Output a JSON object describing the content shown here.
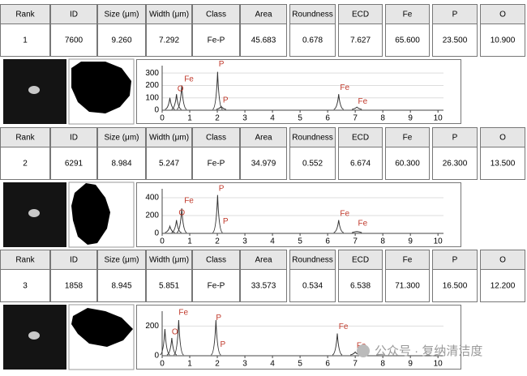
{
  "columns": [
    "Rank",
    "ID",
    "Size (μm)",
    "Width (μm)",
    "Class",
    "Area",
    "Roundness",
    "ECD",
    "Fe",
    "P",
    "O"
  ],
  "records": [
    {
      "values": [
        "1",
        "7600",
        "9.260",
        "7.292",
        "Fe-P",
        "45.683",
        "0.678",
        "7.627",
        "65.600",
        "23.500",
        "10.900"
      ],
      "spectrum": {
        "xlim": [
          0,
          10.2
        ],
        "xticks": [
          0,
          1,
          2,
          3,
          4,
          5,
          6,
          7,
          8,
          9,
          10
        ],
        "ylim": [
          0,
          360
        ],
        "yticks": [
          0,
          100,
          200,
          300
        ],
        "peaks": [
          {
            "x": 0.28,
            "y": 100
          },
          {
            "x": 0.52,
            "y": 130
          },
          {
            "x": 0.71,
            "y": 200
          },
          {
            "x": 2.01,
            "y": 310
          },
          {
            "x": 2.14,
            "y": 30
          },
          {
            "x": 6.4,
            "y": 130
          },
          {
            "x": 7.06,
            "y": 25
          }
        ],
        "labels": [
          {
            "text": "O",
            "x": 0.55,
            "y": 170
          },
          {
            "text": "Fe",
            "x": 0.8,
            "y": 250
          },
          {
            "text": "P",
            "x": 2.05,
            "y": 370
          },
          {
            "text": "P",
            "x": 2.2,
            "y": 80
          },
          {
            "text": "Fe",
            "x": 6.45,
            "y": 180
          },
          {
            "text": "Fe",
            "x": 7.1,
            "y": 70
          }
        ]
      }
    },
    {
      "values": [
        "2",
        "6291",
        "8.984",
        "5.247",
        "Fe-P",
        "34.979",
        "0.552",
        "6.674",
        "60.300",
        "26.300",
        "13.500"
      ],
      "spectrum": {
        "xlim": [
          0,
          10.2
        ],
        "xticks": [
          0,
          1,
          2,
          3,
          4,
          5,
          6,
          7,
          8,
          9,
          10
        ],
        "ylim": [
          0,
          500
        ],
        "yticks": [
          0,
          200,
          400
        ],
        "peaks": [
          {
            "x": 0.28,
            "y": 80
          },
          {
            "x": 0.52,
            "y": 150
          },
          {
            "x": 0.71,
            "y": 280
          },
          {
            "x": 2.01,
            "y": 430
          },
          {
            "x": 6.4,
            "y": 150
          },
          {
            "x": 7.06,
            "y": 20
          }
        ],
        "labels": [
          {
            "text": "O",
            "x": 0.6,
            "y": 230
          },
          {
            "text": "Fe",
            "x": 0.8,
            "y": 365
          },
          {
            "text": "P",
            "x": 2.05,
            "y": 500
          },
          {
            "text": "P",
            "x": 2.2,
            "y": 135
          },
          {
            "text": "Fe",
            "x": 6.45,
            "y": 220
          },
          {
            "text": "Fe",
            "x": 7.1,
            "y": 110
          }
        ]
      }
    },
    {
      "values": [
        "3",
        "1858",
        "8.945",
        "5.851",
        "Fe-P",
        "33.573",
        "0.534",
        "6.538",
        "71.300",
        "16.500",
        "12.200"
      ],
      "spectrum": {
        "xlim": [
          0,
          10.2
        ],
        "xticks": [
          0,
          1,
          2,
          3,
          4,
          5,
          6,
          7,
          8,
          9,
          10
        ],
        "ylim": [
          0,
          300
        ],
        "yticks": [
          0,
          200
        ],
        "peaks": [
          {
            "x": 0.1,
            "y": 180
          },
          {
            "x": 0.35,
            "y": 120
          },
          {
            "x": 0.6,
            "y": 240
          },
          {
            "x": 1.95,
            "y": 240
          },
          {
            "x": 6.35,
            "y": 150
          },
          {
            "x": 7.0,
            "y": 25
          }
        ],
        "labels": [
          {
            "text": "O",
            "x": 0.35,
            "y": 160
          },
          {
            "text": "Fe",
            "x": 0.6,
            "y": 290
          },
          {
            "text": "P",
            "x": 1.95,
            "y": 255
          },
          {
            "text": "P",
            "x": 2.1,
            "y": 75
          },
          {
            "text": "Fe",
            "x": 6.4,
            "y": 195
          },
          {
            "text": "Fe",
            "x": 7.05,
            "y": 65
          }
        ]
      }
    }
  ],
  "watermark": "公众号 · 复纳清洁度"
}
